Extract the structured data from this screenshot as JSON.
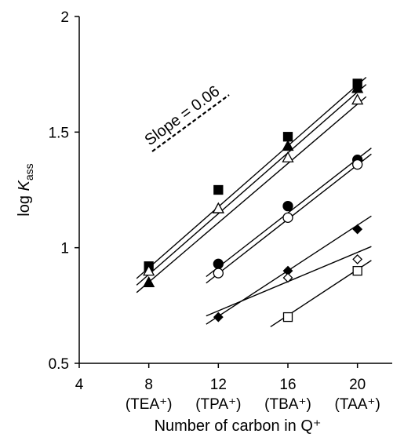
{
  "chart_data": {
    "type": "scatter",
    "xlabel": "Number of carbon in Q⁺",
    "ylabel_main": "log ",
    "ylabel_italic": "K",
    "ylabel_sub": "ass",
    "xlim": [
      4,
      22
    ],
    "ylim": [
      0.5,
      2
    ],
    "x_ticks": [
      {
        "value": 4,
        "label": "4",
        "sublabel": ""
      },
      {
        "value": 8,
        "label": "8",
        "sublabel": "(TEA⁺)"
      },
      {
        "value": 12,
        "label": "12",
        "sublabel": "(TPA⁺)"
      },
      {
        "value": 16,
        "label": "16",
        "sublabel": "(TBA⁺)"
      },
      {
        "value": 20,
        "label": "20",
        "sublabel": "(TAA⁺)"
      }
    ],
    "y_ticks": [
      "0.5",
      "1",
      "1.5",
      "2"
    ],
    "grid": false,
    "annotation": {
      "text": "Slope = 0.06",
      "slope": 0.06
    },
    "series": [
      {
        "marker": "square-filled",
        "points": [
          [
            8,
            0.92
          ],
          [
            12,
            1.25
          ],
          [
            16,
            1.48
          ],
          [
            20,
            1.71
          ]
        ],
        "fit": {
          "x": [
            7.3,
            20.5
          ],
          "y": [
            0.867,
            1.737
          ]
        }
      },
      {
        "marker": "triangle-filled",
        "points": [
          [
            8,
            0.85
          ],
          [
            12,
            1.17
          ],
          [
            16,
            1.44
          ],
          [
            20,
            1.69
          ]
        ],
        "fit": {
          "x": [
            7.3,
            20.5
          ],
          "y": [
            0.838,
            1.706
          ]
        }
      },
      {
        "marker": "triangle-open",
        "points": [
          [
            8,
            0.9
          ],
          [
            12,
            1.17
          ],
          [
            16,
            1.39
          ],
          [
            20,
            1.64
          ]
        ],
        "fit": {
          "x": [
            7.3,
            20.5
          ],
          "y": [
            0.806,
            1.653
          ]
        }
      },
      {
        "marker": "circle-filled",
        "points": [
          [
            12,
            0.93
          ],
          [
            16,
            1.18
          ],
          [
            20,
            1.38
          ]
        ],
        "fit": {
          "x": [
            11.3,
            20.8
          ],
          "y": [
            0.875,
            1.431
          ]
        }
      },
      {
        "marker": "circle-open",
        "points": [
          [
            12,
            0.89
          ],
          [
            16,
            1.13
          ],
          [
            20,
            1.36
          ]
        ],
        "fit": {
          "x": [
            11.3,
            20.8
          ],
          "y": [
            0.847,
            1.405
          ]
        }
      },
      {
        "marker": "diamond-filled",
        "points": [
          [
            12,
            0.7
          ],
          [
            16,
            0.9
          ],
          [
            20,
            1.08
          ]
        ],
        "fit": {
          "x": [
            11.3,
            20.8
          ],
          "y": [
            0.669,
            1.137
          ]
        }
      },
      {
        "marker": "diamond-open",
        "points": [
          [
            16,
            0.87
          ],
          [
            20,
            0.95
          ]
        ],
        "fit": {
          "x": [
            11.3,
            20.8
          ],
          "y": [
            0.705,
            1.005
          ]
        }
      },
      {
        "marker": "square-open",
        "points": [
          [
            16,
            0.7
          ],
          [
            20,
            0.9
          ]
        ],
        "fit": {
          "x": [
            15.0,
            20.8
          ],
          "y": [
            0.658,
            0.945
          ]
        }
      }
    ]
  }
}
